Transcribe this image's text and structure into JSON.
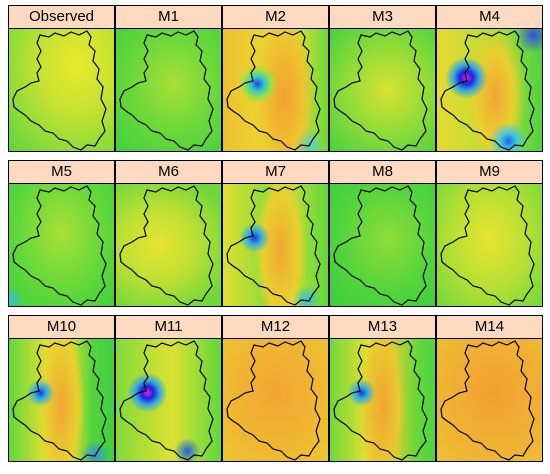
{
  "panels": [
    {
      "label": "Observed"
    },
    {
      "label": "M1"
    },
    {
      "label": "M2"
    },
    {
      "label": "M3"
    },
    {
      "label": "M4"
    },
    {
      "label": "M5"
    },
    {
      "label": "M6"
    },
    {
      "label": "M7"
    },
    {
      "label": "M8"
    },
    {
      "label": "M9"
    },
    {
      "label": "M10"
    },
    {
      "label": "M11"
    },
    {
      "label": "M12"
    },
    {
      "label": "M13"
    },
    {
      "label": "M14"
    }
  ]
}
